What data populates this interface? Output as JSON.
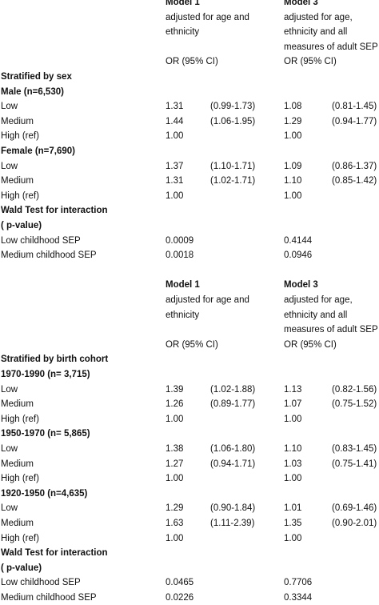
{
  "section1": {
    "header": {
      "model1_title": "Model 1",
      "model1_desc": [
        "adjusted for age and",
        "ethnicity"
      ],
      "model3_title": "Model 3",
      "model3_desc": [
        "adjusted for age,",
        "ethnicity and all",
        "measures of adult SEP"
      ],
      "or_label": "OR (95% CI)"
    },
    "stratified_label": "Stratified by sex",
    "groups": [
      {
        "label": "Male   (n=6,530)",
        "rows": [
          {
            "label": "Low",
            "m1_or": "1.31",
            "m1_ci": "(0.99-1.73)",
            "m3_or": "1.08",
            "m3_ci": "(0.81-1.45)"
          },
          {
            "label": "Medium",
            "m1_or": "1.44",
            "m1_ci": "(1.06-1.95)",
            "m3_or": "1.29",
            "m3_ci": "(0.94-1.77)"
          },
          {
            "label": "High  (ref)",
            "m1_or": "1.00",
            "m1_ci": "",
            "m3_or": "1.00",
            "m3_ci": ""
          }
        ]
      },
      {
        "label": "Female    (n=7,690)",
        "rows": [
          {
            "label": "Low",
            "m1_or": "1.37",
            "m1_ci": "(1.10-1.71)",
            "m3_or": "1.09",
            "m3_ci": "(0.86-1.37)"
          },
          {
            "label": "Medium",
            "m1_or": "1.31",
            "m1_ci": "(1.02-1.71)",
            "m3_or": "1.10",
            "m3_ci": "(0.85-1.42)"
          },
          {
            "label": "High  (ref)",
            "m1_or": "1.00",
            "m1_ci": "",
            "m3_or": "1.00",
            "m3_ci": ""
          }
        ]
      }
    ],
    "wald": {
      "title_line1": "Wald Test  for interaction",
      "title_line2": "( p-value)",
      "rows": [
        {
          "label": "Low childhood SEP",
          "m1": "0.0009",
          "m3": "0.4144"
        },
        {
          "label": "Medium childhood SEP",
          "m1": "0.0018",
          "m3": "0.0946"
        }
      ]
    }
  },
  "section2": {
    "header": {
      "model1_title": "Model 1",
      "model1_desc": [
        "adjusted for age and",
        "ethnicity"
      ],
      "model3_title": "Model 3",
      "model3_desc": [
        "adjusted for age,",
        "ethnicity and all",
        "measures of adult SEP"
      ],
      "or_label": "OR (95% CI)"
    },
    "stratified_label": "Stratified by birth cohort",
    "groups": [
      {
        "label": "1970-1990     (n= 3,715)",
        "rows": [
          {
            "label": "Low",
            "m1_or": "1.39",
            "m1_ci": "(1.02-1.88)",
            "m3_or": "1.13",
            "m3_ci": "(0.82-1.56)"
          },
          {
            "label": "Medium",
            "m1_or": "1.26",
            "m1_ci": "(0.89-1.77)",
            "m3_or": "1.07",
            "m3_ci": "(0.75-1.52)"
          },
          {
            "label": "High  (ref)",
            "m1_or": "1.00",
            "m1_ci": "",
            "m3_or": "1.00",
            "m3_ci": ""
          }
        ]
      },
      {
        "label": "1950-1970     (n= 5,865)",
        "rows": [
          {
            "label": "Low",
            "m1_or": "1.38",
            "m1_ci": "(1.06-1.80)",
            "m3_or": "1.10",
            "m3_ci": "(0.83-1.45)"
          },
          {
            "label": "Medium",
            "m1_or": "1.27",
            "m1_ci": "(0.94-1.71)",
            "m3_or": "1.03",
            "m3_ci": "(0.75-1.41)"
          },
          {
            "label": "High  (ref)",
            "m1_or": "1.00",
            "m1_ci": "",
            "m3_or": "1.00",
            "m3_ci": ""
          }
        ]
      },
      {
        "label": "1920-1950     (n=4,635)",
        "rows": [
          {
            "label": "Low",
            "m1_or": "1.29",
            "m1_ci": "(0.90-1.84)",
            "m3_or": "1.01",
            "m3_ci": "(0.69-1.46)"
          },
          {
            "label": "Medium",
            "m1_or": "1.63",
            "m1_ci": "(1.11-2.39)",
            "m3_or": "1.35",
            "m3_ci": "(0.90-2.01)"
          },
          {
            "label": "High  (ref)",
            "m1_or": "1.00",
            "m1_ci": "",
            "m3_or": "1.00",
            "m3_ci": ""
          }
        ]
      }
    ],
    "wald": {
      "title_line1": "Wald Test  for interaction",
      "title_line2": "( p-value)",
      "rows": [
        {
          "label": "Low childhood SEP",
          "m1": "0.0465",
          "m3": "0.7706"
        },
        {
          "label": "Medium childhood SEP",
          "m1": "0.0226",
          "m3": "0.3344"
        }
      ]
    }
  }
}
